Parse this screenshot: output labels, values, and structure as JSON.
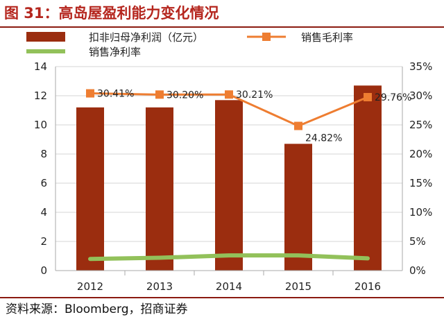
{
  "title": "图 31：高岛屋盈利能力变化情况",
  "source": "资料来源：Bloomberg，招商证券",
  "colors": {
    "bar": "#9b2d0f",
    "gross_margin": "#ee7d31",
    "net_margin": "#92c15a",
    "title": "#b5261e"
  },
  "chart_data": {
    "type": "bar",
    "categories": [
      "2012",
      "2013",
      "2014",
      "2015",
      "2016"
    ],
    "series": [
      {
        "name": "扣非归母净利润（亿元）",
        "type": "bar",
        "axis": "left",
        "values": [
          11.2,
          11.2,
          11.7,
          8.7,
          12.7
        ]
      },
      {
        "name": "销售毛利率",
        "type": "line",
        "axis": "right",
        "marker": "square",
        "values": [
          30.41,
          30.2,
          30.21,
          24.82,
          29.76
        ],
        "labels": [
          "30.41%",
          "30.20%",
          "30.21%",
          "24.82%",
          "29.76%"
        ]
      },
      {
        "name": "销售净利率",
        "type": "line",
        "axis": "right",
        "values": [
          2.0,
          2.2,
          2.6,
          2.6,
          2.1
        ]
      }
    ],
    "ylim_left": [
      0,
      14
    ],
    "yticks_left": [
      "0",
      "2",
      "4",
      "6",
      "8",
      "10",
      "12",
      "14"
    ],
    "ylim_right": [
      0,
      35
    ],
    "yticks_right": [
      "0%",
      "5%",
      "10%",
      "15%",
      "20%",
      "25%",
      "30%",
      "35%"
    ],
    "grid": true,
    "legend_position": "top"
  }
}
